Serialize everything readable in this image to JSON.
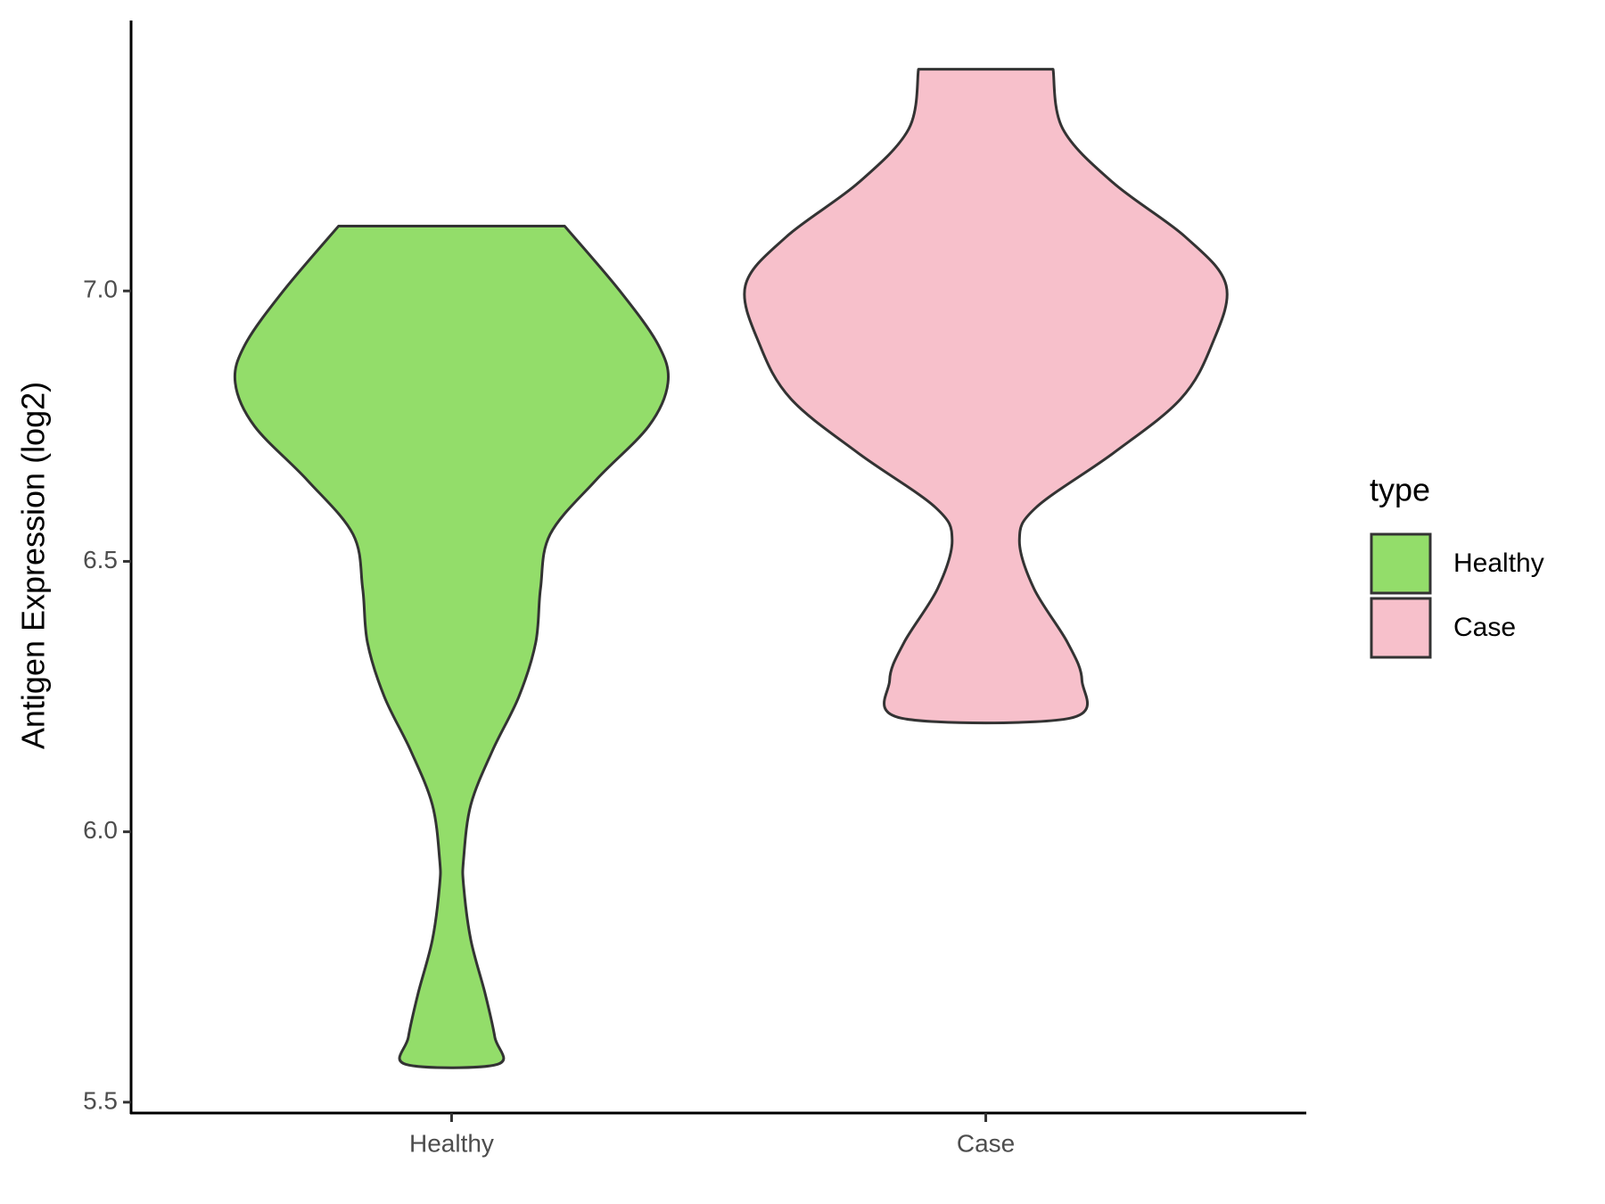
{
  "chart_data": {
    "type": "violin",
    "y_label": "Antigen Expression (log2)",
    "categories": [
      "Healthy",
      "Case"
    ],
    "ylim": [
      5.48,
      7.5
    ],
    "yticks": [
      {
        "value": 5.5,
        "label": "5.5"
      },
      {
        "value": 6.0,
        "label": "6.0"
      },
      {
        "value": 6.5,
        "label": "6.5"
      },
      {
        "value": 7.0,
        "label": "7.0"
      }
    ],
    "legend_title": "type",
    "legend_position": "right",
    "series": [
      {
        "name": "Healthy",
        "color": "#93dd6a",
        "y": [
          7.12,
          7.0,
          6.9,
          6.83,
          6.75,
          6.65,
          6.55,
          6.45,
          6.35,
          6.25,
          6.15,
          6.05,
          5.95,
          5.9,
          5.8,
          5.7,
          5.62,
          5.57
        ],
        "width": [
          0.47,
          0.7,
          0.86,
          0.9,
          0.82,
          0.6,
          0.41,
          0.37,
          0.35,
          0.28,
          0.17,
          0.08,
          0.05,
          0.05,
          0.08,
          0.14,
          0.18,
          0.19
        ]
      },
      {
        "name": "Case",
        "color": "#f7c0cb",
        "y": [
          7.41,
          7.3,
          7.2,
          7.1,
          7.01,
          6.9,
          6.8,
          6.7,
          6.6,
          6.54,
          6.45,
          6.35,
          6.28,
          6.21
        ],
        "width": [
          0.28,
          0.32,
          0.53,
          0.83,
          1.0,
          0.94,
          0.81,
          0.53,
          0.21,
          0.14,
          0.2,
          0.34,
          0.4,
          0.35
        ]
      }
    ]
  }
}
